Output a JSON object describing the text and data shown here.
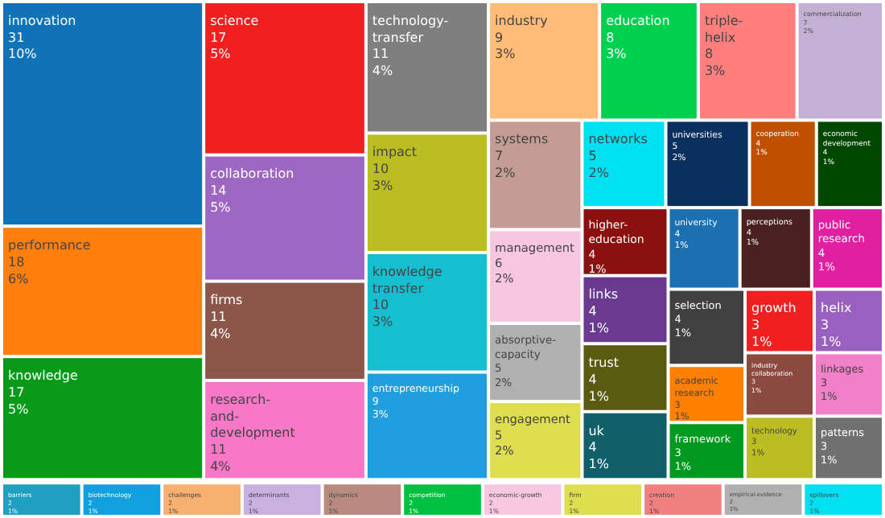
{
  "chart_data": {
    "type": "other",
    "data_labels": true,
    "categories": [
      "innovation",
      "performance",
      "knowledge",
      "science",
      "collaboration",
      "firms",
      "research-and-development",
      "technology-transfer",
      "impact",
      "knowledge transfer",
      "entrepreneurship",
      "industry",
      "education",
      "triple-helix",
      "commercialization",
      "systems",
      "management",
      "absorptive-capacity",
      "engagement",
      "networks",
      "universities",
      "cooperation",
      "economic development",
      "higher-education",
      "links",
      "trust",
      "uk",
      "university",
      "perceptions",
      "public research",
      "selection",
      "academic research",
      "framework",
      "growth",
      "helix",
      "industry collaboration",
      "technology",
      "linkages",
      "patterns",
      "barriers",
      "biotechnology",
      "challenges",
      "determinants",
      "dynamics",
      "competition",
      "economic-growth",
      "firm",
      "creation",
      "empirical-evidence",
      "spillovers"
    ],
    "values": [
      31,
      18,
      17,
      17,
      14,
      11,
      11,
      11,
      10,
      10,
      9,
      9,
      8,
      8,
      7,
      7,
      6,
      5,
      5,
      5,
      5,
      4,
      4,
      4,
      4,
      4,
      4,
      4,
      4,
      4,
      4,
      3,
      3,
      3,
      3,
      3,
      3,
      3,
      3,
      2,
      2,
      2,
      2,
      2,
      2,
      2,
      2,
      2,
      2,
      2
    ],
    "annotations": [
      {
        "text": "10%",
        "x": "innovation"
      },
      {
        "text": "6%",
        "x": "performance"
      },
      {
        "text": "5%",
        "x": "knowledge"
      },
      {
        "text": "5%",
        "x": "science"
      },
      {
        "text": "5%",
        "x": "collaboration"
      },
      {
        "text": "4%",
        "x": "firms"
      },
      {
        "text": "4%",
        "x": "research-and-development"
      },
      {
        "text": "4%",
        "x": "technology-transfer"
      },
      {
        "text": "3%",
        "x": "impact"
      },
      {
        "text": "3%",
        "x": "knowledge transfer"
      },
      {
        "text": "3%",
        "x": "entrepreneurship"
      },
      {
        "text": "3%",
        "x": "industry"
      },
      {
        "text": "3%",
        "x": "education"
      },
      {
        "text": "3%",
        "x": "triple-helix"
      },
      {
        "text": "2%",
        "x": "commercialization"
      },
      {
        "text": "2%",
        "x": "systems"
      },
      {
        "text": "2%",
        "x": "management"
      },
      {
        "text": "2%",
        "x": "absorptive-capacity"
      },
      {
        "text": "2%",
        "x": "engagement"
      },
      {
        "text": "2%",
        "x": "networks"
      },
      {
        "text": "2%",
        "x": "universities"
      },
      {
        "text": "1%",
        "x": "cooperation"
      },
      {
        "text": "1%",
        "x": "economic development"
      },
      {
        "text": "1%",
        "x": "higher-education"
      },
      {
        "text": "1%",
        "x": "links"
      },
      {
        "text": "1%",
        "x": "trust"
      },
      {
        "text": "1%",
        "x": "uk"
      },
      {
        "text": "1%",
        "x": "university"
      },
      {
        "text": "1%",
        "x": "perceptions"
      },
      {
        "text": "1%",
        "x": "public research"
      },
      {
        "text": "1%",
        "x": "selection"
      },
      {
        "text": "1%",
        "x": "academic research"
      },
      {
        "text": "1%",
        "x": "framework"
      },
      {
        "text": "1%",
        "x": "growth"
      },
      {
        "text": "1%",
        "x": "helix"
      },
      {
        "text": "1%",
        "x": "industry collaboration"
      },
      {
        "text": "1%",
        "x": "technology"
      },
      {
        "text": "1%",
        "x": "linkages"
      },
      {
        "text": "1%",
        "x": "patterns"
      },
      {
        "text": "1%",
        "x": "barriers"
      },
      {
        "text": "1%",
        "x": "biotechnology"
      },
      {
        "text": "1%",
        "x": "challenges"
      },
      {
        "text": "1%",
        "x": "determinants"
      },
      {
        "text": "1%",
        "x": "dynamics"
      },
      {
        "text": "1%",
        "x": "competition"
      },
      {
        "text": "1%",
        "x": "economic-growth"
      },
      {
        "text": "1%",
        "x": "firm"
      },
      {
        "text": "1%",
        "x": "creation"
      },
      {
        "text": "1%",
        "x": "empirical-evidence"
      },
      {
        "text": "1%",
        "x": "spillovers"
      }
    ],
    "colors": [
      "#0f73b6",
      "#ff7f0e",
      "#0a9a1a",
      "#f02020",
      "#9d66c0",
      "#8c564b",
      "#f878c8",
      "#7f7f7f",
      "#bcbd22",
      "#17becf",
      "#1f9fe0",
      "#ffbb78",
      "#00d050",
      "#ff7f7f",
      "#c5b0d5",
      "#c49c94",
      "#f7c6e0",
      "#b0b0b0",
      "#dede50",
      "#00e0f0",
      "#0a3060",
      "#c05000",
      "#004800",
      "#8b1010",
      "#6a3a90",
      "#5a5a10",
      "#10606a",
      "#1a70b0",
      "#4a2020",
      "#e020a0",
      "#404040",
      "#ff8000",
      "#009a20",
      "#f02020",
      "#9a60c0",
      "#8c4a40",
      "#bcbd22",
      "#f080c8",
      "#707070",
      "#20a0c0",
      "#10a0e0",
      "#f8b070",
      "#c8b0e0",
      "#b88a80",
      "#00c040",
      "#f8c8e0",
      "#dede50",
      "#f08080",
      "#b0b0b0",
      "#00e0f0"
    ]
  }
}
